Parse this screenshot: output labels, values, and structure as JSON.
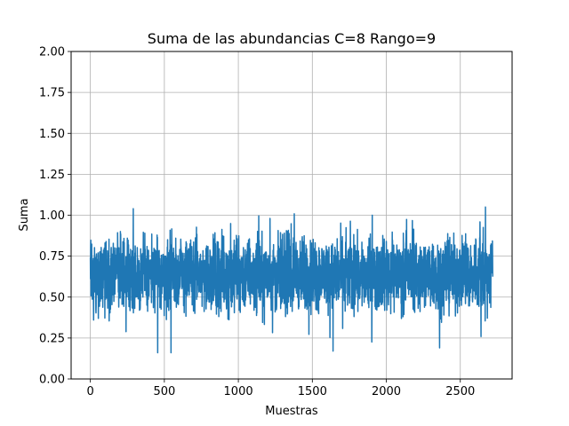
{
  "chart_data": {
    "type": "line",
    "title": "Suma de las abundancias C=8 Rango=9",
    "xlabel": "Muestras",
    "ylabel": "Suma",
    "xlim": [
      -130,
      2850
    ],
    "ylim": [
      0.0,
      2.0
    ],
    "xticks": [
      0,
      500,
      1000,
      1500,
      2000,
      2500
    ],
    "xtick_labels": [
      "0",
      "500",
      "1000",
      "1500",
      "2000",
      "2500"
    ],
    "yticks": [
      0.0,
      0.25,
      0.5,
      0.75,
      1.0,
      1.25,
      1.5,
      1.75,
      2.0
    ],
    "ytick_labels": [
      "0.00",
      "0.25",
      "0.50",
      "0.75",
      "1.00",
      "1.25",
      "1.50",
      "1.75",
      "2.00"
    ],
    "grid": true,
    "series": [
      {
        "color": "#1f77b4",
        "n_samples": 2720,
        "mean": 0.64,
        "typical_range": [
          0.42,
          0.9
        ],
        "min": 0.16,
        "max": 1.05,
        "extremes": [
          {
            "x": 290,
            "y": 1.04
          },
          {
            "x": 2670,
            "y": 1.05
          },
          {
            "x": 455,
            "y": 0.16
          },
          {
            "x": 545,
            "y": 0.16
          },
          {
            "x": 1640,
            "y": 0.17
          },
          {
            "x": 2360,
            "y": 0.19
          }
        ]
      }
    ]
  }
}
